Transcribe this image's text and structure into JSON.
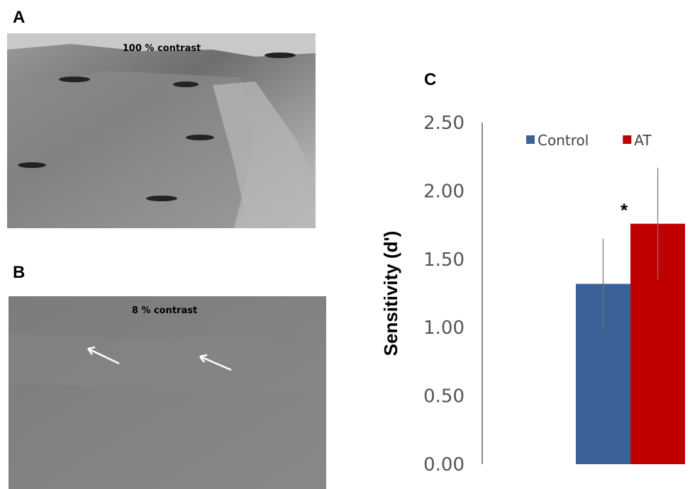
{
  "panels": [
    {
      "label": "A",
      "caption": "100 % contrast"
    },
    {
      "label": "B",
      "caption": "8 % contrast"
    }
  ],
  "chart_data": {
    "type": "bar",
    "label": "C",
    "categories": [
      null
    ],
    "series": [
      {
        "name": "Control",
        "color": "#3a6298",
        "values": [
          1.32
        ],
        "errors": [
          0.33
        ]
      },
      {
        "name": "AT",
        "color": "#c00000",
        "values": [
          1.76
        ],
        "errors": [
          0.41
        ]
      }
    ],
    "annotation": "*",
    "ylabel": "Sensitivity (d')",
    "ylim": [
      0,
      2.5
    ],
    "yticks": [
      {
        "value": 0,
        "label": "0.00"
      },
      {
        "value": 0.5,
        "label": "0.50"
      },
      {
        "value": 1,
        "label": "1.00"
      },
      {
        "value": 1.5,
        "label": "1.50"
      },
      {
        "value": 2,
        "label": "2.00"
      },
      {
        "value": 2.5,
        "label": "2.50"
      }
    ],
    "legend": "top-right"
  }
}
